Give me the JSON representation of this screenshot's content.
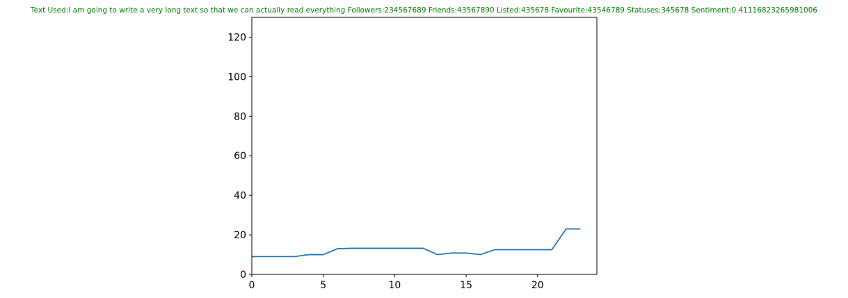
{
  "chart_data": {
    "type": "line",
    "title": "Text Used:I am going to write a very long text so that we can actually read everything Followers:234567689 Friends:43567890 Listed:435678 Favourite:43546789 Statuses:345678 Sentiment:0.41116823265981006",
    "title_color": "#008000",
    "xlabel": "",
    "ylabel": "",
    "xlim": [
      0,
      24.15
    ],
    "ylim": [
      0,
      130
    ],
    "xticks": [
      0,
      5,
      10,
      15,
      20
    ],
    "yticks": [
      0,
      20,
      40,
      60,
      80,
      100,
      120
    ],
    "grid": false,
    "series": [
      {
        "color": "#1f77b4",
        "x": [
          0,
          1,
          2,
          3,
          4,
          5,
          6,
          7,
          8,
          9,
          10,
          11,
          12,
          13,
          14,
          15,
          16,
          17,
          18,
          19,
          20,
          21,
          22,
          23
        ],
        "y": [
          9,
          9,
          9,
          9,
          10,
          10,
          13,
          13.2,
          13.2,
          13.2,
          13.2,
          13.2,
          13.2,
          10,
          10.8,
          10.8,
          10,
          12.5,
          12.5,
          12.5,
          12.5,
          12.5,
          23,
          23
        ]
      }
    ]
  }
}
